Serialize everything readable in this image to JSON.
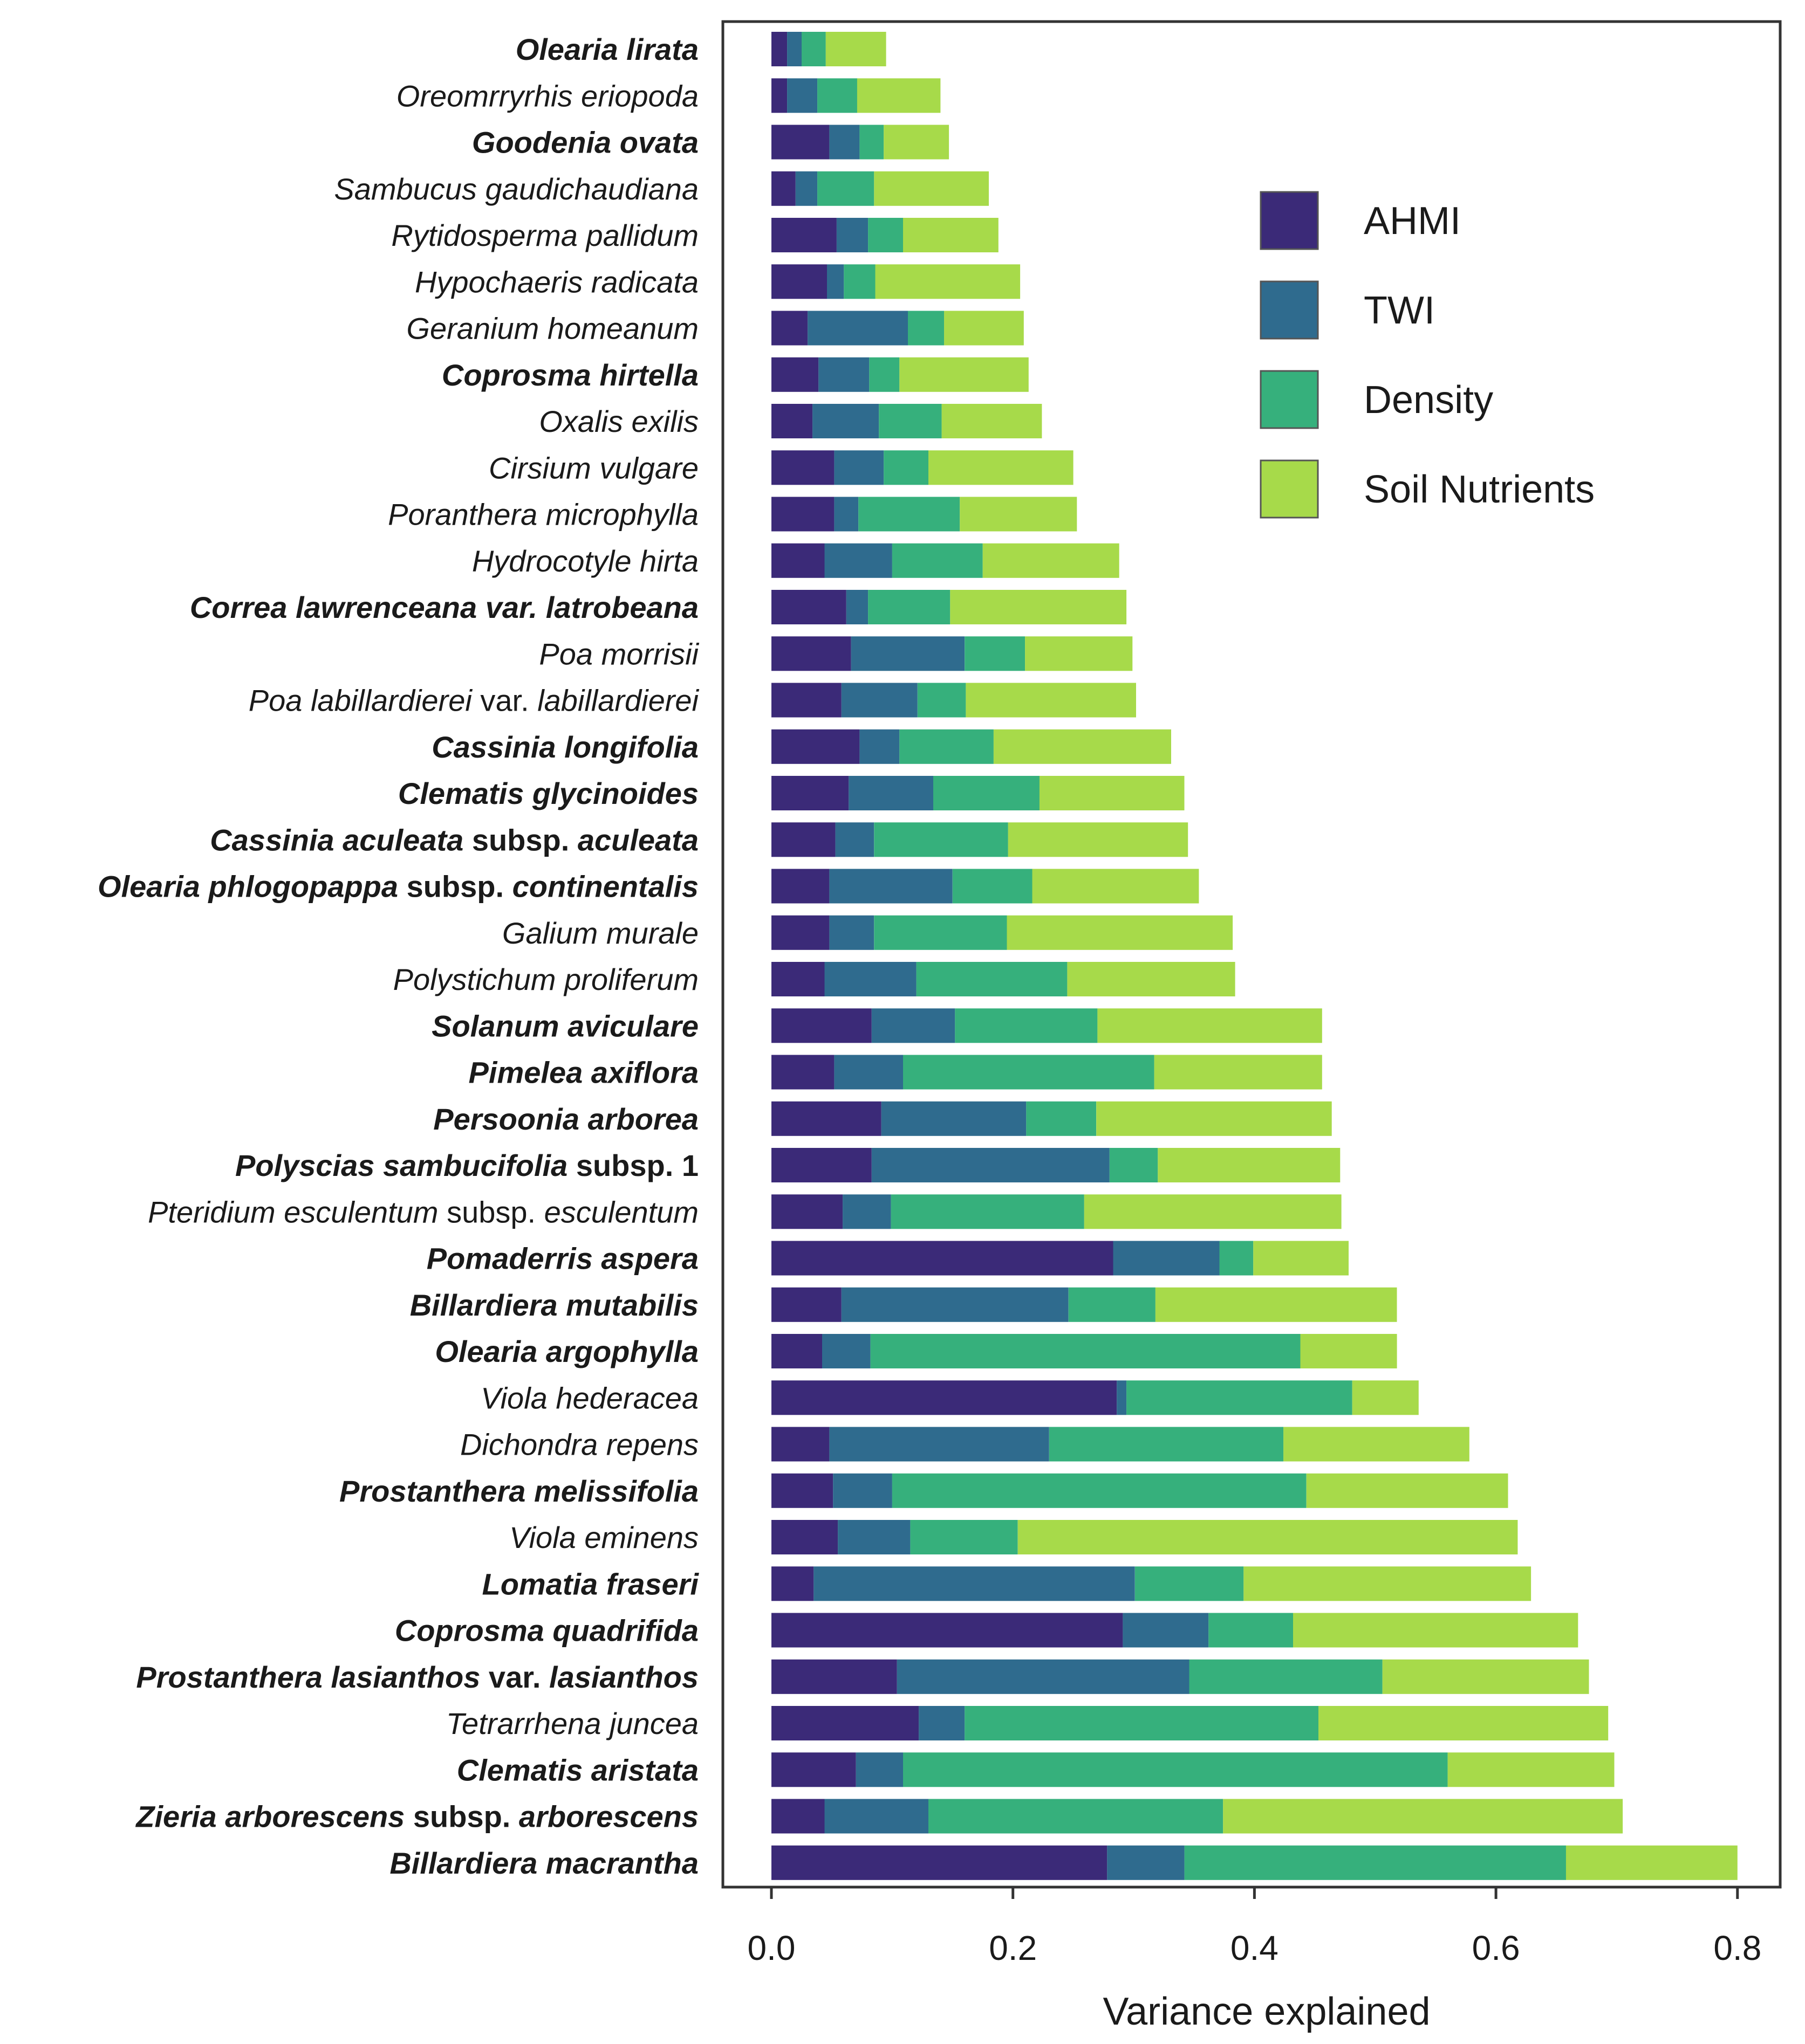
{
  "chart_data": {
    "type": "bar",
    "orientation": "horizontal",
    "stacked": true,
    "xlabel": "Variance explained",
    "ylabel": "",
    "xlim": [
      -0.04,
      0.83
    ],
    "xticks": [
      0.0,
      0.2,
      0.4,
      0.6,
      0.8
    ],
    "xtick_labels": [
      "0.0",
      "0.2",
      "0.4",
      "0.6",
      "0.8"
    ],
    "legend_position": "top-right",
    "series": [
      {
        "name": "AHMI",
        "color": "#3b2a78"
      },
      {
        "name": "TWI",
        "color": "#2f6b8e"
      },
      {
        "name": "Density",
        "color": "#36b07c"
      },
      {
        "name": "Soil Nutrients",
        "color": "#a7da4a"
      }
    ],
    "categories": [
      {
        "parts": [
          {
            "t": "Olearia lirata",
            "s": "bi"
          }
        ],
        "values": [
          0.013,
          0.012,
          0.02,
          0.05
        ]
      },
      {
        "parts": [
          {
            "t": "Oreomrryrhis eriopoda",
            "s": "i"
          }
        ],
        "values": [
          0.013,
          0.025,
          0.033,
          0.069
        ]
      },
      {
        "parts": [
          {
            "t": "Goodenia ovata",
            "s": "bi"
          }
        ],
        "values": [
          0.048,
          0.025,
          0.02,
          0.054
        ]
      },
      {
        "parts": [
          {
            "t": "Sambucus gaudichaudiana",
            "s": "i"
          }
        ],
        "values": [
          0.02,
          0.018,
          0.047,
          0.095
        ]
      },
      {
        "parts": [
          {
            "t": "Rytidosperma pallidum",
            "s": "i"
          }
        ],
        "values": [
          0.054,
          0.026,
          0.029,
          0.079
        ]
      },
      {
        "parts": [
          {
            "t": "Hypochaeris radicata",
            "s": "i"
          }
        ],
        "values": [
          0.046,
          0.014,
          0.026,
          0.12
        ]
      },
      {
        "parts": [
          {
            "t": "Geranium homeanum",
            "s": "i"
          }
        ],
        "values": [
          0.03,
          0.083,
          0.03,
          0.066
        ]
      },
      {
        "parts": [
          {
            "t": "Coprosma hirtella",
            "s": "bi"
          }
        ],
        "values": [
          0.039,
          0.042,
          0.025,
          0.107
        ]
      },
      {
        "parts": [
          {
            "t": "Oxalis exilis",
            "s": "i"
          }
        ],
        "values": [
          0.034,
          0.055,
          0.052,
          0.083
        ]
      },
      {
        "parts": [
          {
            "t": "Cirsium vulgare",
            "s": "i"
          }
        ],
        "values": [
          0.052,
          0.041,
          0.037,
          0.12
        ]
      },
      {
        "parts": [
          {
            "t": "Poranthera microphylla",
            "s": "i"
          }
        ],
        "values": [
          0.052,
          0.02,
          0.084,
          0.097
        ]
      },
      {
        "parts": [
          {
            "t": "Hydrocotyle hirta",
            "s": "i"
          }
        ],
        "values": [
          0.044,
          0.056,
          0.075,
          0.113
        ]
      },
      {
        "parts": [
          {
            "t": "Correa lawrenceana var. latrobeana",
            "s": "bi"
          }
        ],
        "values": [
          0.062,
          0.018,
          0.068,
          0.146
        ]
      },
      {
        "parts": [
          {
            "t": "Poa morrisii",
            "s": "i"
          }
        ],
        "values": [
          0.066,
          0.094,
          0.05,
          0.089
        ]
      },
      {
        "parts": [
          {
            "t": "Poa labillardierei ",
            "s": "i"
          },
          {
            "t": "var. ",
            "s": "n"
          },
          {
            "t": "labillardierei",
            "s": "i"
          }
        ],
        "values": [
          0.058,
          0.063,
          0.04,
          0.141
        ]
      },
      {
        "parts": [
          {
            "t": "Cassinia longifolia",
            "s": "bi"
          }
        ],
        "values": [
          0.073,
          0.033,
          0.078,
          0.147
        ]
      },
      {
        "parts": [
          {
            "t": "Clematis glycinoides",
            "s": "bi"
          }
        ],
        "values": [
          0.064,
          0.07,
          0.088,
          0.12
        ]
      },
      {
        "parts": [
          {
            "t": "Cassinia aculeata",
            "s": "bi"
          },
          {
            "t": " subsp. ",
            "s": "b"
          },
          {
            "t": "aculeata",
            "s": "bi"
          }
        ],
        "values": [
          0.053,
          0.032,
          0.111,
          0.149
        ]
      },
      {
        "parts": [
          {
            "t": "Olearia phlogopappa",
            "s": "bi"
          },
          {
            "t": " subsp. ",
            "s": "b"
          },
          {
            "t": "continentalis",
            "s": "bi"
          }
        ],
        "values": [
          0.048,
          0.102,
          0.066,
          0.138
        ]
      },
      {
        "parts": [
          {
            "t": "Galium murale",
            "s": "i"
          }
        ],
        "values": [
          0.048,
          0.037,
          0.11,
          0.187
        ]
      },
      {
        "parts": [
          {
            "t": "Polystichum proliferum",
            "s": "i"
          }
        ],
        "values": [
          0.044,
          0.076,
          0.125,
          0.139
        ]
      },
      {
        "parts": [
          {
            "t": "Solanum aviculare",
            "s": "bi"
          }
        ],
        "values": [
          0.083,
          0.069,
          0.118,
          0.186
        ]
      },
      {
        "parts": [
          {
            "t": "Pimelea axiflora",
            "s": "bi"
          }
        ],
        "values": [
          0.052,
          0.057,
          0.208,
          0.139
        ]
      },
      {
        "parts": [
          {
            "t": "Persoonia arborea",
            "s": "bi"
          }
        ],
        "values": [
          0.091,
          0.12,
          0.058,
          0.195
        ]
      },
      {
        "parts": [
          {
            "t": "Polyscias sambucifolia",
            "s": "bi"
          },
          {
            "t": " subsp. 1",
            "s": "b"
          }
        ],
        "values": [
          0.083,
          0.197,
          0.04,
          0.151
        ]
      },
      {
        "parts": [
          {
            "t": "Pteridium esculentum",
            "s": "i"
          },
          {
            "t": " subsp. ",
            "s": "n"
          },
          {
            "t": "esculentum",
            "s": "i"
          }
        ],
        "values": [
          0.059,
          0.04,
          0.16,
          0.213
        ]
      },
      {
        "parts": [
          {
            "t": "Pomaderris aspera",
            "s": "bi"
          }
        ],
        "values": [
          0.283,
          0.088,
          0.028,
          0.079
        ]
      },
      {
        "parts": [
          {
            "t": "Billardiera mutabilis",
            "s": "bi"
          }
        ],
        "values": [
          0.058,
          0.188,
          0.072,
          0.2
        ]
      },
      {
        "parts": [
          {
            "t": "Olearia argophylla",
            "s": "bi"
          }
        ],
        "values": [
          0.042,
          0.04,
          0.356,
          0.08
        ]
      },
      {
        "parts": [
          {
            "t": "Viola hederacea",
            "s": "i"
          }
        ],
        "values": [
          0.286,
          0.008,
          0.187,
          0.055
        ]
      },
      {
        "parts": [
          {
            "t": "Dichondra repens",
            "s": "i"
          }
        ],
        "values": [
          0.048,
          0.182,
          0.194,
          0.154
        ]
      },
      {
        "parts": [
          {
            "t": "Prostanthera melissifolia",
            "s": "bi"
          }
        ],
        "values": [
          0.051,
          0.049,
          0.343,
          0.167
        ]
      },
      {
        "parts": [
          {
            "t": "Viola eminens",
            "s": "i"
          }
        ],
        "values": [
          0.055,
          0.06,
          0.089,
          0.414
        ]
      },
      {
        "parts": [
          {
            "t": "Lomatia fraseri",
            "s": "bi"
          }
        ],
        "values": [
          0.035,
          0.266,
          0.09,
          0.238
        ]
      },
      {
        "parts": [
          {
            "t": "Coprosma quadrifida",
            "s": "bi"
          }
        ],
        "values": [
          0.291,
          0.071,
          0.07,
          0.236
        ]
      },
      {
        "parts": [
          {
            "t": "Prostanthera lasianthos",
            "s": "bi"
          },
          {
            "t": " var. ",
            "s": "b"
          },
          {
            "t": "lasianthos",
            "s": "bi"
          }
        ],
        "values": [
          0.104,
          0.242,
          0.16,
          0.171
        ]
      },
      {
        "parts": [
          {
            "t": "Tetrarrhena juncea",
            "s": "i"
          }
        ],
        "values": [
          0.122,
          0.038,
          0.293,
          0.24
        ]
      },
      {
        "parts": [
          {
            "t": "Clematis aristata",
            "s": "bi"
          }
        ],
        "values": [
          0.07,
          0.039,
          0.451,
          0.138
        ]
      },
      {
        "parts": [
          {
            "t": "Zieria arborescens",
            "s": "bi"
          },
          {
            "t": " subsp. ",
            "s": "b"
          },
          {
            "t": "arborescens",
            "s": "bi"
          }
        ],
        "values": [
          0.044,
          0.086,
          0.244,
          0.331
        ]
      },
      {
        "parts": [
          {
            "t": "Billardiera macrantha",
            "s": "bi"
          }
        ],
        "values": [
          0.278,
          0.064,
          0.316,
          0.142
        ]
      }
    ]
  }
}
